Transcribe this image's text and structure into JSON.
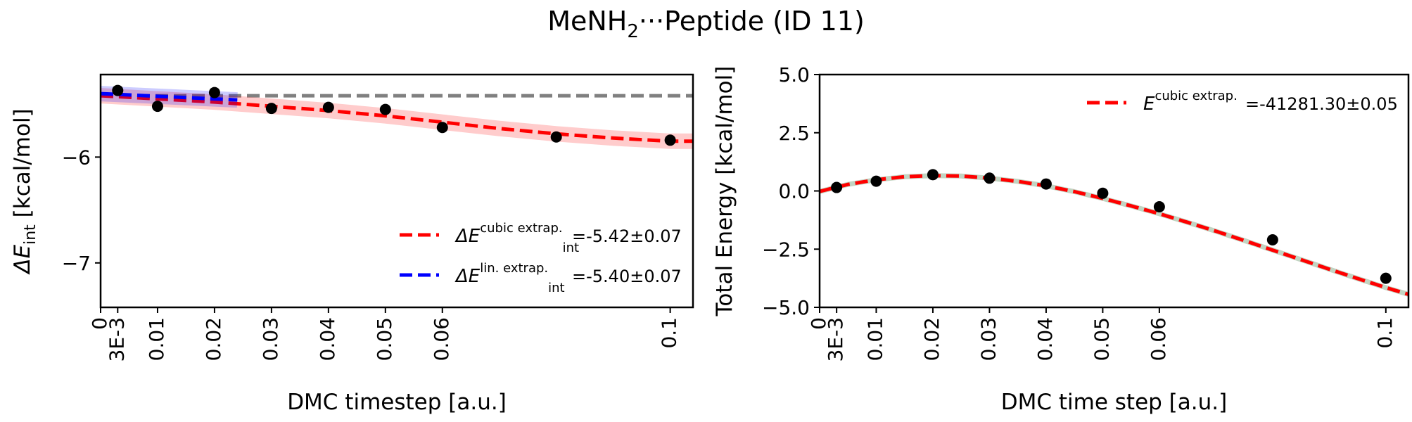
{
  "figure": {
    "title_prefix": "MeNH",
    "title_subscript": "2",
    "title_suffix": "···Peptide (ID 11)"
  },
  "chart_data": [
    {
      "type": "line",
      "xlabel": "DMC timestep [a.u.]",
      "ylabel_main": "ΔE",
      "ylabel_sub": "int",
      "ylabel_unit": " [kcal/mol]",
      "xlim": [
        0,
        0.104
      ],
      "ylim": [
        -7.42,
        -5.22
      ],
      "x_ticks": [
        0,
        0.003,
        0.01,
        0.02,
        0.03,
        0.04,
        0.05,
        0.06,
        0.1
      ],
      "x_tick_labels": [
        "0",
        "3E-3",
        "0.01",
        "0.02",
        "0.03",
        "0.04",
        "0.05",
        "0.06",
        "0.1"
      ],
      "y_ticks": [
        -7,
        -6
      ],
      "y_tick_labels": [
        "−7",
        "−6"
      ],
      "points": {
        "x": [
          0.003,
          0.01,
          0.02,
          0.03,
          0.04,
          0.05,
          0.06,
          0.08,
          0.1
        ],
        "y": [
          -5.37,
          -5.52,
          -5.39,
          -5.54,
          -5.53,
          -5.55,
          -5.72,
          -5.81,
          -5.84
        ],
        "err": [
          0.04,
          0.04,
          0.04,
          0.03,
          0.03,
          0.03,
          0.03,
          0.03,
          0.04
        ]
      },
      "series": [
        {
          "name_main": "ΔE",
          "name_sup": "cubic extrap.",
          "name_sub": "int",
          "value": "=-5.42±0.07",
          "color": "#ff0000",
          "style": "dashed",
          "x": [
            0,
            0.01,
            0.02,
            0.03,
            0.04,
            0.05,
            0.06,
            0.07,
            0.08,
            0.09,
            0.1,
            0.104
          ],
          "y": [
            -5.42,
            -5.45,
            -5.48,
            -5.52,
            -5.56,
            -5.61,
            -5.67,
            -5.73,
            -5.78,
            -5.82,
            -5.85,
            -5.85
          ]
        },
        {
          "name_main": "ΔE",
          "name_sup": "lin. extrap.",
          "name_sub": "int",
          "value": "=-5.40±0.07",
          "color": "#0000ff",
          "style": "dashed",
          "x": [
            0,
            0.024
          ],
          "y": [
            -5.4,
            -5.46
          ]
        }
      ],
      "reference_line": {
        "y": -5.42,
        "color": "#808080"
      },
      "legend_position": "lower-right"
    },
    {
      "type": "line",
      "xlabel": "DMC time step [a.u.]",
      "ylabel": "Total Energy [kcal/mol]",
      "xlim": [
        0,
        0.104
      ],
      "ylim": [
        -5.0,
        5.0
      ],
      "x_ticks": [
        0,
        0.003,
        0.01,
        0.02,
        0.03,
        0.04,
        0.05,
        0.06,
        0.1
      ],
      "x_tick_labels": [
        "0",
        "3E-3",
        "0.01",
        "0.02",
        "0.03",
        "0.04",
        "0.05",
        "0.06",
        "0.1"
      ],
      "y_ticks": [
        -5.0,
        -2.5,
        0.0,
        2.5,
        5.0
      ],
      "y_tick_labels": [
        "−5.0",
        "−2.5",
        "0.0",
        "2.5",
        "5.0"
      ],
      "points": {
        "x": [
          0.003,
          0.01,
          0.02,
          0.03,
          0.04,
          0.05,
          0.06,
          0.08,
          0.1
        ],
        "y": [
          0.15,
          0.42,
          0.7,
          0.55,
          0.3,
          -0.1,
          -0.68,
          -2.1,
          -3.75
        ]
      },
      "series": [
        {
          "name_main": "E",
          "name_sup": "cubic extrap.",
          "value": "=-41281.30±0.05",
          "color": "#ff0000",
          "style": "dashed",
          "x": [
            0,
            0.005,
            0.01,
            0.015,
            0.02,
            0.025,
            0.03,
            0.035,
            0.04,
            0.045,
            0.05,
            0.055,
            0.06,
            0.065,
            0.07,
            0.075,
            0.08,
            0.085,
            0.09,
            0.095,
            0.1,
            0.104
          ],
          "y": [
            -0.02,
            0.28,
            0.48,
            0.61,
            0.66,
            0.64,
            0.55,
            0.41,
            0.22,
            -0.03,
            -0.32,
            -0.64,
            -0.98,
            -1.35,
            -1.73,
            -2.13,
            -2.54,
            -2.95,
            -3.36,
            -3.76,
            -4.15,
            -4.44
          ]
        }
      ],
      "legend_position": "top-right"
    }
  ]
}
